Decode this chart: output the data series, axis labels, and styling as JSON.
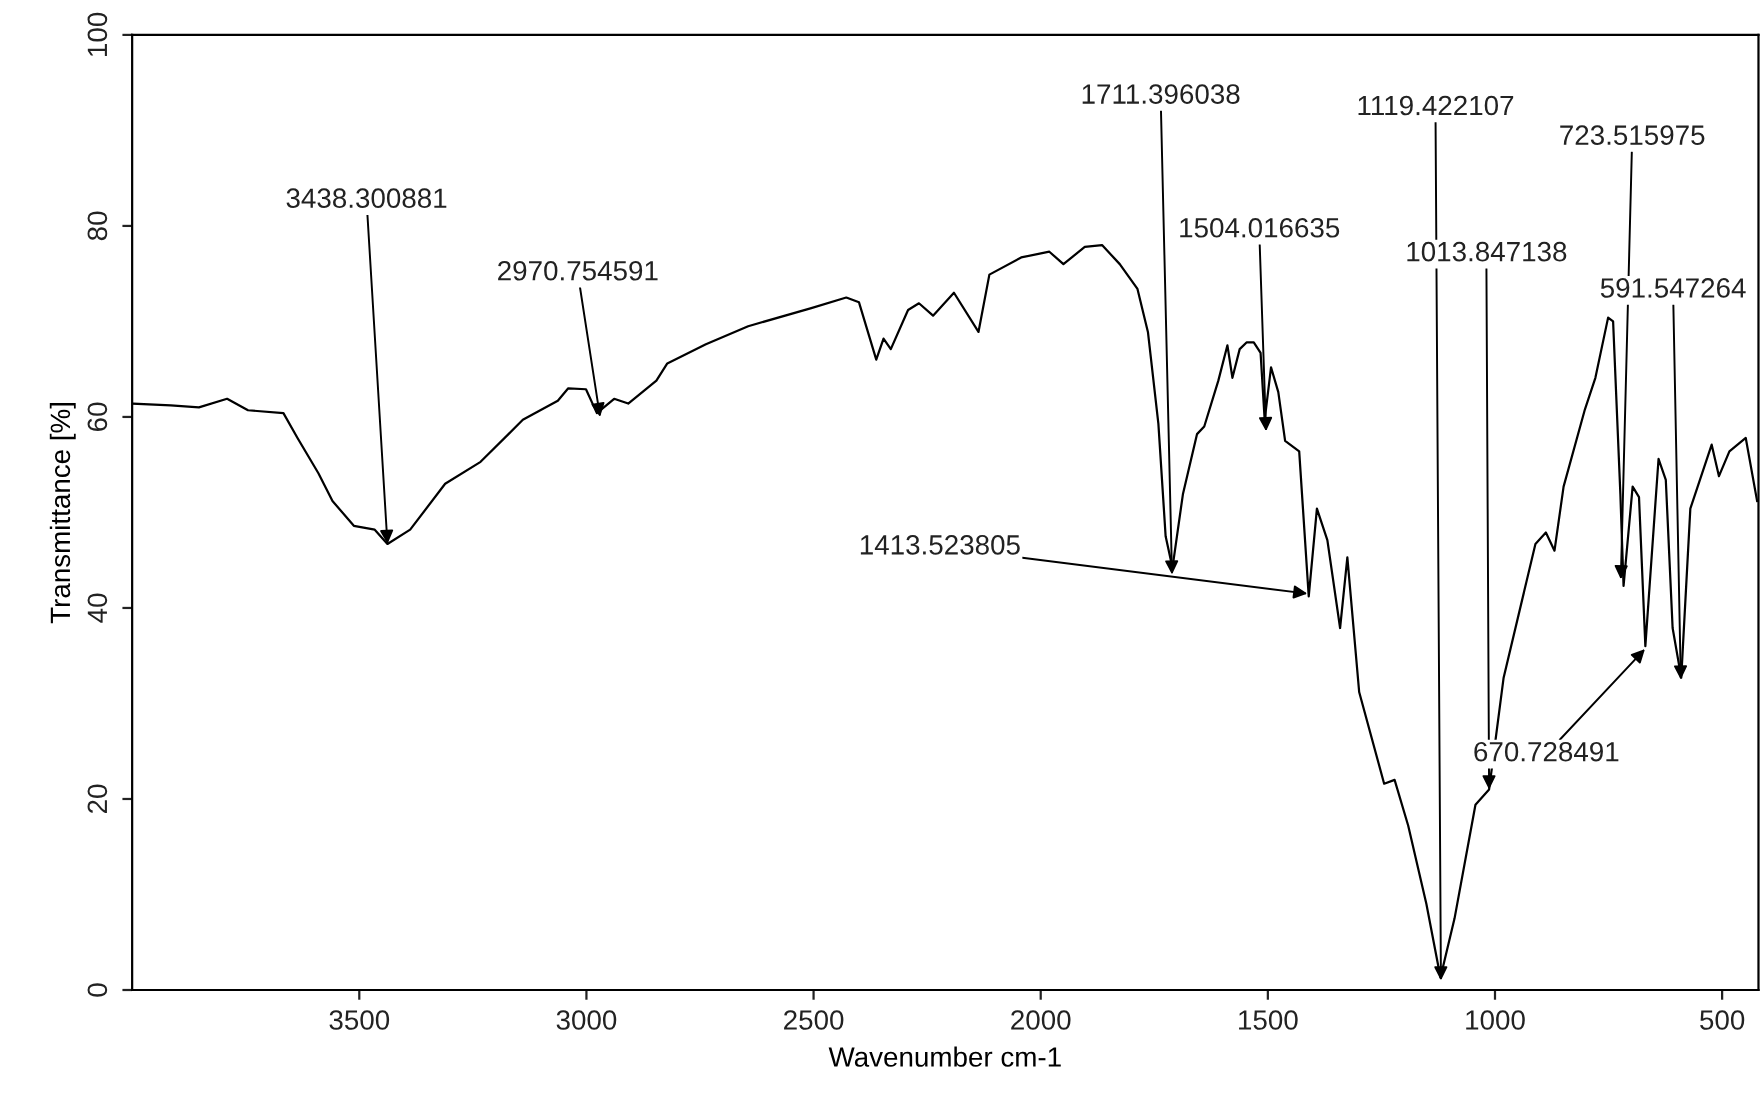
{
  "chart_data": {
    "type": "line",
    "xlabel": "Wavenumber cm-1",
    "ylabel": "Transmittance [%]",
    "xlim": [
      4000,
      420
    ],
    "xticks": [
      3500,
      3000,
      2500,
      2000,
      1500,
      1000,
      500
    ],
    "ylim": [
      0,
      100
    ],
    "yticks": [
      0,
      20,
      40,
      60,
      80,
      100
    ],
    "grid": false,
    "legend": false,
    "series": [
      {
        "color": "#000000",
        "x": [
          3998,
          3915,
          3853,
          3791,
          3745,
          3667,
          3636,
          3590,
          3559,
          3512,
          3466,
          3438,
          3388,
          3311,
          3233,
          3140,
          3063,
          3040,
          3001,
          2977,
          2939,
          2908,
          2846,
          2822,
          2737,
          2644,
          2505,
          2428,
          2400,
          2362,
          2346,
          2330,
          2292,
          2268,
          2237,
          2191,
          2137,
          2113,
          2043,
          1981,
          1950,
          1903,
          1865,
          1826,
          1787,
          1764,
          1741,
          1725,
          1710,
          1687,
          1656,
          1640,
          1609,
          1589,
          1578,
          1562,
          1547,
          1531,
          1516,
          1507,
          1493,
          1477,
          1462,
          1431,
          1410,
          1392,
          1369,
          1341,
          1325,
          1299,
          1244,
          1221,
          1191,
          1151,
          1120,
          1089,
          1043,
          1013,
          981,
          911,
          888,
          869,
          849,
          802,
          779,
          751,
          740,
          724,
          717,
          697,
          683,
          669,
          640,
          624,
          609,
          590,
          570,
          523,
          507,
          484,
          448,
          423
        ],
        "values": [
          61.4,
          61.2,
          61.0,
          61.9,
          60.7,
          60.4,
          57.8,
          54.1,
          51.2,
          48.6,
          48.2,
          46.7,
          48.2,
          53.0,
          55.3,
          59.7,
          61.7,
          63.0,
          62.9,
          60.4,
          61.9,
          61.4,
          63.8,
          65.6,
          67.6,
          69.5,
          71.4,
          72.5,
          72.0,
          66.0,
          68.2,
          67.1,
          71.2,
          71.9,
          70.6,
          73.0,
          68.9,
          74.9,
          76.7,
          77.3,
          76.0,
          77.8,
          78.0,
          76.0,
          73.4,
          68.9,
          59.3,
          47.5,
          44.2,
          51.9,
          58.2,
          59.0,
          63.8,
          67.5,
          64.1,
          67.1,
          67.8,
          67.8,
          66.7,
          59.7,
          65.2,
          62.6,
          57.5,
          56.4,
          41.2,
          50.4,
          47.1,
          37.9,
          45.3,
          31.2,
          21.6,
          22.0,
          17.2,
          9.0,
          1.3,
          7.5,
          19.4,
          21,
          32.7,
          46.7,
          47.9,
          46.0,
          52.7,
          60.8,
          64.1,
          70.4,
          70.0,
          51.9,
          42.3,
          52.7,
          51.6,
          36.0,
          55.6,
          53.4,
          37.9,
          32.7,
          50.4,
          57.1,
          53.8,
          56.4,
          57.8,
          51.2
        ]
      }
    ],
    "annotations": [
      {
        "text": "3438.300881",
        "x": 3438,
        "y": 46.7
      },
      {
        "text": "2970.754591",
        "x": 2970,
        "y": 60
      },
      {
        "text": "1711.396038",
        "x": 1711,
        "y": 43.5
      },
      {
        "text": "1504.016635",
        "x": 1504,
        "y": 58.5
      },
      {
        "text": "1413.523805",
        "x": 1413,
        "y": 41.5
      },
      {
        "text": "1119.422107",
        "x": 1119,
        "y": 1
      },
      {
        "text": "1013.847138",
        "x": 1013,
        "y": 21
      },
      {
        "text": "723.515975",
        "x": 723,
        "y": 43
      },
      {
        "text": "670.728491",
        "x": 670,
        "y": 35.7
      },
      {
        "text": "591.547264",
        "x": 591,
        "y": 32.5
      }
    ]
  }
}
